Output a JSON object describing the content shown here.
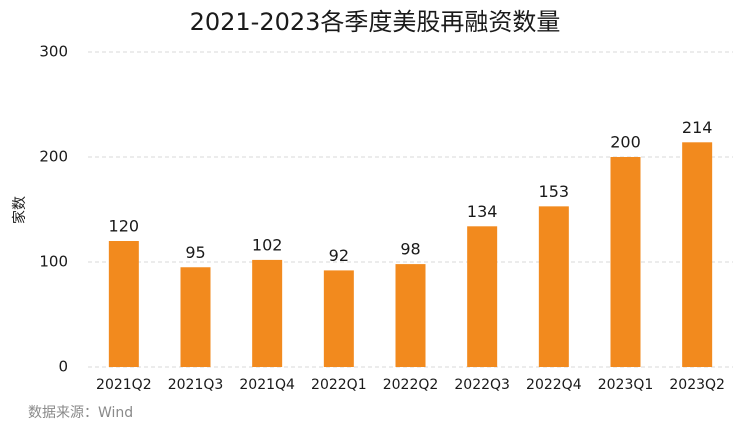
{
  "chart_data": {
    "type": "bar",
    "title": "2021-2023各季度美股再融资数量",
    "y_label": "家数",
    "source": "数据来源：Wind",
    "categories": [
      "2021Q2",
      "2021Q3",
      "2021Q4",
      "2022Q1",
      "2022Q2",
      "2022Q3",
      "2022Q4",
      "2023Q1",
      "2023Q2"
    ],
    "values": [
      120,
      95,
      102,
      92,
      98,
      134,
      153,
      200,
      214
    ],
    "color": "#f28a1e",
    "ylim": [
      0,
      300
    ],
    "yticks": [
      0,
      100,
      200,
      300
    ],
    "grid": true
  }
}
